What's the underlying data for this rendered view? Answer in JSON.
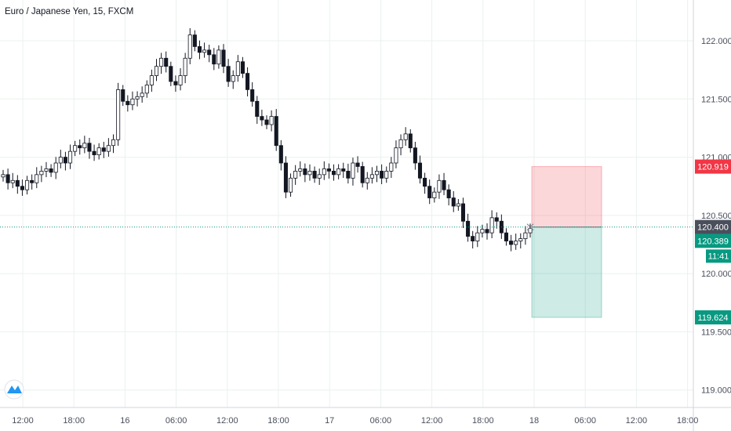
{
  "chart_data": {
    "type": "candlestick",
    "title": "Euro / Japanese Yen, 15, FXCM",
    "ylim": [
      118.85,
      122.35
    ],
    "y_ticks": [
      "122.000",
      "121.500",
      "121.000",
      "120.500",
      "120.000",
      "119.500",
      "119.000"
    ],
    "y_tick_values": [
      122.0,
      121.5,
      121.0,
      120.5,
      120.0,
      119.5,
      119.0
    ],
    "x_ticks": [
      "12:00",
      "18:00",
      "16",
      "06:00",
      "12:00",
      "18:00",
      "17",
      "06:00",
      "12:00",
      "18:00",
      "18",
      "06:00",
      "12:00",
      "18:00"
    ],
    "grid": true,
    "series": [
      {
        "close": [
          120.85,
          120.78,
          120.8,
          120.75,
          120.72,
          120.8,
          120.78,
          120.85,
          120.88,
          120.9,
          120.87,
          120.95,
          121.0,
          120.95,
          121.05,
          121.1,
          121.08,
          121.12,
          121.05,
          121.02,
          121.08,
          121.05,
          121.1,
          121.15,
          121.58,
          121.48,
          121.45,
          121.5,
          121.52,
          121.55,
          121.62,
          121.7,
          121.78,
          121.85,
          121.78,
          121.65,
          121.62,
          121.7,
          121.85,
          122.05,
          121.95,
          121.9,
          121.92,
          121.88,
          121.8,
          121.92,
          121.78,
          121.65,
          121.7,
          121.82,
          121.72,
          121.58,
          121.48,
          121.35,
          121.32,
          121.28,
          121.35,
          121.1,
          120.95,
          120.7,
          120.82,
          120.88,
          120.9,
          120.85,
          120.88,
          120.82,
          120.85,
          120.9,
          120.88,
          120.85,
          120.9,
          120.88,
          120.82,
          120.95,
          120.92,
          120.78,
          120.82,
          120.85,
          120.88,
          120.82,
          120.88,
          120.95,
          121.08,
          121.15,
          121.2,
          121.08,
          120.95,
          120.82,
          120.75,
          120.65,
          120.7,
          120.8,
          120.72,
          120.65,
          120.58,
          120.6,
          120.45,
          120.32,
          120.28,
          120.35,
          120.38,
          120.35,
          120.48,
          120.45,
          120.35,
          120.28,
          120.25,
          120.28,
          120.3,
          120.35,
          120.389
        ]
      }
    ],
    "last_price": {
      "label": "120.389",
      "value": 120.389,
      "countdown": "11:41"
    },
    "crosshair_price": {
      "label": "120.400",
      "value": 120.4
    },
    "position": {
      "type": "short",
      "entry": 120.4,
      "stop": 120.919,
      "target": 119.624,
      "stop_label": "120.919",
      "target_label": "119.624",
      "stop_color": "#f23645",
      "target_color": "#089981"
    },
    "colors": {
      "up": "#26a69a",
      "down": "#ef5350",
      "wick": "#131722",
      "grid": "#e8f2ee"
    }
  }
}
